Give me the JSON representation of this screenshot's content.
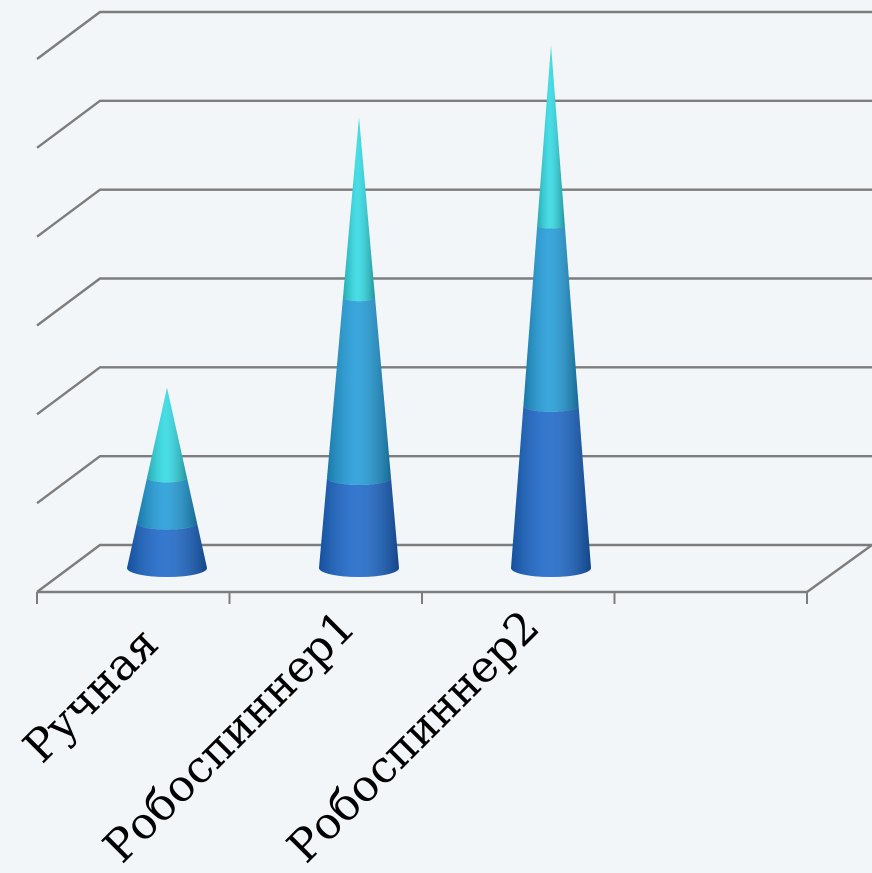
{
  "chart_data": {
    "type": "bar",
    "bar_shape": "3d-cone",
    "title": "",
    "xlabel": "",
    "ylabel": "",
    "ylim": [
      0,
      6
    ],
    "grid": true,
    "legend": "none",
    "categories": [
      "Ручная",
      "Робоспиннер1",
      "Робоспиннер2"
    ],
    "series": [
      {
        "values": [
          0.5,
          1.0,
          1.8
        ],
        "color": "#1a66c9"
      },
      {
        "values": [
          0.5,
          2.0,
          2.0
        ],
        "color": "#1f9bd8"
      },
      {
        "values": [
          1.0,
          2.0,
          2.0
        ],
        "color": "#2fd9e3"
      }
    ],
    "num_category_slots": 4
  }
}
